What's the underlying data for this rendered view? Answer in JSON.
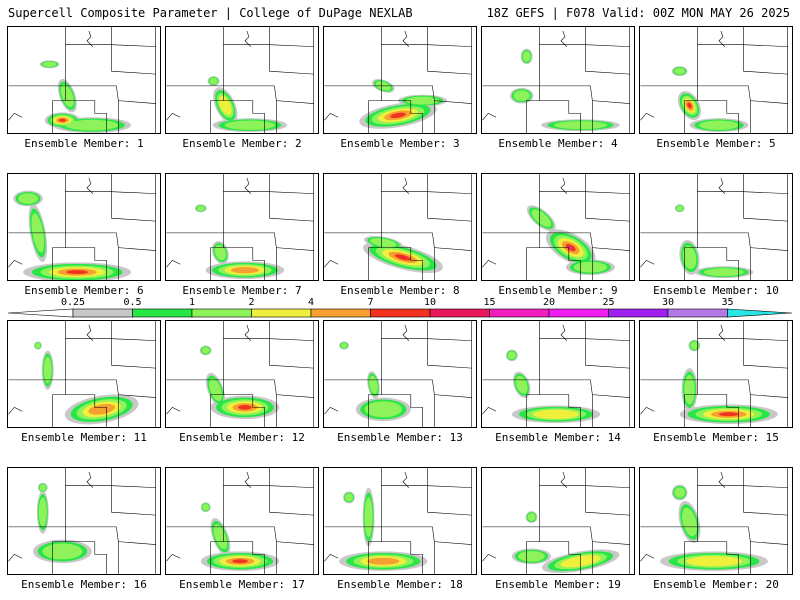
{
  "header": {
    "left": "Supercell Composite Parameter | College of DuPage NEXLAB",
    "right": "18Z GEFS | F078 Valid: 00Z MON MAY 26 2025"
  },
  "colorbar": {
    "bins": [
      {
        "from": "0.25",
        "to": "0.5",
        "color": "#c8c8c8"
      },
      {
        "from": "0.5",
        "to": "1",
        "color": "#27e645"
      },
      {
        "from": "1",
        "to": "2",
        "color": "#8ef25a"
      },
      {
        "from": "2",
        "to": "4",
        "color": "#f0f03c"
      },
      {
        "from": "4",
        "to": "7",
        "color": "#f5a031"
      },
      {
        "from": "7",
        "to": "10",
        "color": "#f0321e"
      },
      {
        "from": "10",
        "to": "15",
        "color": "#e8185a"
      },
      {
        "from": "15",
        "to": "20",
        "color": "#f01ebe"
      },
      {
        "from": "20",
        "to": "25",
        "color": "#f01ef0"
      },
      {
        "from": "25",
        "to": "30",
        "color": "#a020f0"
      },
      {
        "from": "30",
        "to": "35",
        "color": "#b478e6"
      },
      {
        "from": "35",
        "to": "",
        "color": "#28e6e6"
      }
    ],
    "tick_labels": [
      "0.25",
      "0.5",
      "1",
      "2",
      "4",
      "7",
      "10",
      "15",
      "20",
      "25",
      "30",
      "35"
    ]
  },
  "members": [
    {
      "label": "Ensemble Member: 1",
      "max_level": "7-10"
    },
    {
      "label": "Ensemble Member: 2",
      "max_level": "2-4"
    },
    {
      "label": "Ensemble Member: 3",
      "max_level": "7-10"
    },
    {
      "label": "Ensemble Member: 4",
      "max_level": "1-2"
    },
    {
      "label": "Ensemble Member: 5",
      "max_level": "7-10"
    },
    {
      "label": "Ensemble Member: 6",
      "max_level": "7-10"
    },
    {
      "label": "Ensemble Member: 7",
      "max_level": "4-7"
    },
    {
      "label": "Ensemble Member: 8",
      "max_level": "10-15"
    },
    {
      "label": "Ensemble Member: 9",
      "max_level": "15-20"
    },
    {
      "label": "Ensemble Member: 10",
      "max_level": "1-2"
    },
    {
      "label": "Ensemble Member: 11",
      "max_level": "4-7"
    },
    {
      "label": "Ensemble Member: 12",
      "max_level": "7-10"
    },
    {
      "label": "Ensemble Member: 13",
      "max_level": "1-2"
    },
    {
      "label": "Ensemble Member: 14",
      "max_level": "2-4"
    },
    {
      "label": "Ensemble Member: 15",
      "max_level": "7-10"
    },
    {
      "label": "Ensemble Member: 16",
      "max_level": "1-2"
    },
    {
      "label": "Ensemble Member: 17",
      "max_level": "7-10"
    },
    {
      "label": "Ensemble Member: 18",
      "max_level": "4-7"
    },
    {
      "label": "Ensemble Member: 19",
      "max_level": "2-4"
    },
    {
      "label": "Ensemble Member: 20",
      "max_level": "2-4"
    }
  ]
}
